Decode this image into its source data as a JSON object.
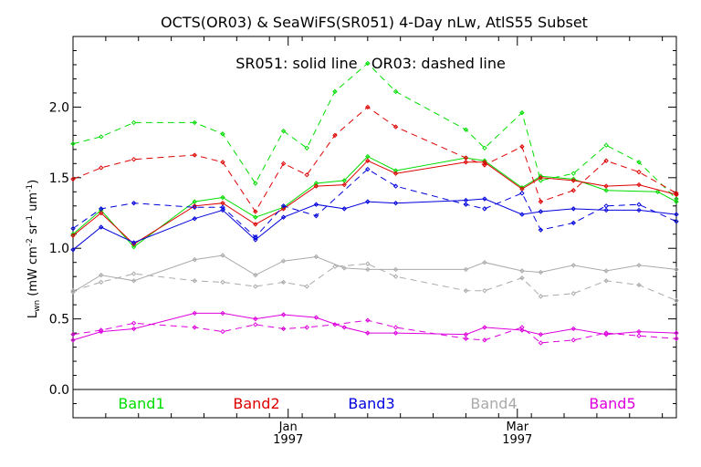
{
  "chart_data": {
    "type": "line",
    "title": "OCTS(OR03) & SeaWiFS(SR051) 4-Day nLw, AtlS55 Subset",
    "annotation": "SR051: solid line   OR03: dashed line",
    "ylabel_main": "L",
    "ylabel_sub": "wn",
    "ylabel_units": "(mW cm",
    "ylabel_units_rest": " sr",
    "ylabel_units_end": " um",
    "ylabel_units_close": ")",
    "ylabel_exp": "-2",
    "ylabel_exp2": "-1",
    "ylabel_exp3": "-1",
    "ylim": [
      -0.2,
      2.5
    ],
    "yticks": [
      "0.0",
      "0.5",
      "1.0",
      "1.5",
      "2.0"
    ],
    "ytick_values": [
      0.0,
      0.5,
      1.0,
      1.5,
      2.0
    ],
    "xlim_days": [
      0,
      129
    ],
    "xticks": [
      {
        "day": 46,
        "month": "Jan",
        "year": "1997"
      },
      {
        "day": 95,
        "month": "Mar",
        "year": "1997"
      }
    ],
    "legend_placement": "bottom-inside",
    "series": [
      {
        "name": "Band1",
        "color": "#00dd00",
        "style": "solid",
        "x": [
          0,
          6,
          13,
          26,
          32,
          39,
          45,
          52,
          58,
          63,
          69,
          84,
          88,
          96,
          100,
          107,
          114,
          125,
          129
        ],
        "y": [
          1.1,
          1.27,
          1.01,
          1.33,
          1.36,
          1.22,
          1.29,
          1.46,
          1.48,
          1.65,
          1.55,
          1.64,
          1.62,
          1.43,
          1.51,
          1.49,
          1.41,
          1.4,
          1.33
        ]
      },
      {
        "name": "Band1",
        "color": "#00dd00",
        "style": "dashed",
        "x": [
          0,
          6,
          13,
          26,
          32,
          39,
          45,
          50,
          56,
          63,
          69,
          84,
          88,
          96,
          100,
          107,
          114,
          121,
          129
        ],
        "y": [
          1.74,
          1.79,
          1.89,
          1.89,
          1.81,
          1.46,
          1.83,
          1.71,
          2.11,
          2.31,
          2.11,
          1.84,
          1.71,
          1.96,
          1.48,
          1.53,
          1.73,
          1.61,
          1.35
        ]
      },
      {
        "name": "Band2",
        "color": "#dd0000",
        "style": "solid",
        "x": [
          0,
          6,
          13,
          26,
          32,
          39,
          45,
          52,
          58,
          63,
          69,
          84,
          88,
          96,
          100,
          107,
          114,
          121,
          129
        ],
        "y": [
          1.09,
          1.25,
          1.03,
          1.3,
          1.32,
          1.17,
          1.28,
          1.44,
          1.45,
          1.62,
          1.53,
          1.61,
          1.61,
          1.42,
          1.5,
          1.48,
          1.44,
          1.45,
          1.38
        ]
      },
      {
        "name": "Band2",
        "color": "#dd0000",
        "style": "dashed",
        "x": [
          0,
          6,
          13,
          26,
          32,
          39,
          45,
          50,
          56,
          63,
          69,
          84,
          88,
          96,
          100,
          107,
          114,
          121,
          129
        ],
        "y": [
          1.49,
          1.57,
          1.63,
          1.66,
          1.61,
          1.26,
          1.6,
          1.52,
          1.8,
          2.0,
          1.86,
          1.64,
          1.59,
          1.72,
          1.33,
          1.41,
          1.62,
          1.54,
          1.39
        ]
      },
      {
        "name": "Band3",
        "color": "#0000dd",
        "style": "solid",
        "x": [
          0,
          6,
          13,
          26,
          32,
          39,
          45,
          52,
          58,
          63,
          69,
          84,
          88,
          96,
          100,
          107,
          114,
          121,
          129
        ],
        "y": [
          0.99,
          1.15,
          1.04,
          1.21,
          1.27,
          1.06,
          1.22,
          1.31,
          1.28,
          1.33,
          1.32,
          1.34,
          1.35,
          1.24,
          1.26,
          1.28,
          1.27,
          1.27,
          1.24
        ]
      },
      {
        "name": "Band3",
        "color": "#0000dd",
        "style": "dashed",
        "x": [
          0,
          6,
          13,
          26,
          32,
          39,
          45,
          52,
          63,
          69,
          84,
          88,
          96,
          100,
          107,
          114,
          121,
          129
        ],
        "y": [
          1.14,
          1.28,
          1.32,
          1.29,
          1.29,
          1.08,
          1.3,
          1.23,
          1.56,
          1.44,
          1.31,
          1.28,
          1.39,
          1.13,
          1.18,
          1.3,
          1.31,
          1.19
        ]
      },
      {
        "name": "Band4",
        "color": "#aaaaaa",
        "style": "solid",
        "x": [
          0,
          6,
          13,
          26,
          32,
          39,
          45,
          52,
          58,
          63,
          69,
          84,
          88,
          96,
          100,
          107,
          114,
          121,
          129
        ],
        "y": [
          0.69,
          0.81,
          0.77,
          0.92,
          0.95,
          0.81,
          0.91,
          0.94,
          0.86,
          0.85,
          0.85,
          0.85,
          0.9,
          0.84,
          0.83,
          0.88,
          0.84,
          0.88,
          0.85
        ]
      },
      {
        "name": "Band4",
        "color": "#aaaaaa",
        "style": "dashed",
        "x": [
          0,
          6,
          13,
          26,
          32,
          39,
          45,
          50,
          56,
          63,
          69,
          84,
          88,
          96,
          100,
          107,
          114,
          121,
          129
        ],
        "y": [
          0.7,
          0.76,
          0.82,
          0.77,
          0.76,
          0.73,
          0.76,
          0.73,
          0.87,
          0.89,
          0.8,
          0.7,
          0.7,
          0.79,
          0.66,
          0.68,
          0.77,
          0.74,
          0.63
        ]
      },
      {
        "name": "Band5",
        "color": "#dd00dd",
        "style": "solid",
        "x": [
          0,
          6,
          13,
          26,
          32,
          39,
          45,
          52,
          58,
          63,
          69,
          84,
          88,
          96,
          100,
          107,
          114,
          121,
          129
        ],
        "y": [
          0.35,
          0.41,
          0.43,
          0.54,
          0.54,
          0.5,
          0.53,
          0.51,
          0.44,
          0.4,
          0.4,
          0.39,
          0.44,
          0.42,
          0.39,
          0.43,
          0.39,
          0.41,
          0.4
        ]
      },
      {
        "name": "Band5",
        "color": "#dd00dd",
        "style": "dashed",
        "x": [
          0,
          6,
          13,
          26,
          32,
          39,
          45,
          50,
          56,
          63,
          69,
          84,
          88,
          96,
          100,
          107,
          114,
          121,
          129
        ],
        "y": [
          0.39,
          0.42,
          0.47,
          0.44,
          0.41,
          0.46,
          0.43,
          0.44,
          0.46,
          0.49,
          0.44,
          0.36,
          0.35,
          0.44,
          0.33,
          0.35,
          0.4,
          0.38,
          0.36
        ]
      }
    ],
    "legend": [
      {
        "label": "Band1",
        "color": "#00dd00"
      },
      {
        "label": "Band2",
        "color": "#dd0000"
      },
      {
        "label": "Band3",
        "color": "#0000dd"
      },
      {
        "label": "Band4",
        "color": "#aaaaaa"
      },
      {
        "label": "Band5",
        "color": "#dd00dd"
      }
    ]
  }
}
